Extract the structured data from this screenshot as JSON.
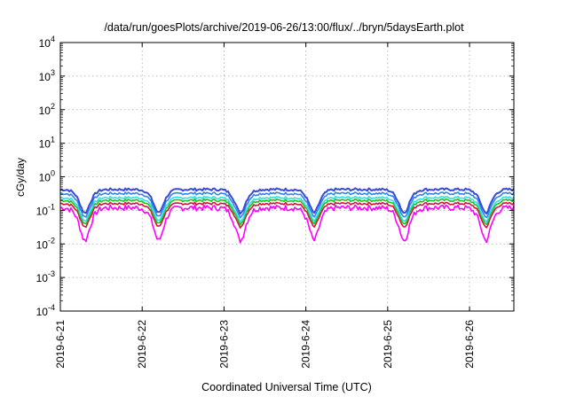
{
  "chart_data": {
    "type": "line",
    "title": "/data/run/goesPlots/archive/2019-06-26/13:00/flux/../bryn/5daysEarth.plot",
    "xlabel": "Coordinated Universal Time (UTC)",
    "ylabel": "cGy/day",
    "yscale": "log",
    "ylim": [
      0.0001,
      10000
    ],
    "y_ticks": [
      {
        "value": 0.0001,
        "base": "10",
        "exp": "-4"
      },
      {
        "value": 0.001,
        "base": "10",
        "exp": "-3"
      },
      {
        "value": 0.01,
        "base": "10",
        "exp": "-2"
      },
      {
        "value": 0.1,
        "base": "10",
        "exp": "-1"
      },
      {
        "value": 1,
        "base": "10",
        "exp": "0"
      },
      {
        "value": 10,
        "base": "10",
        "exp": "1"
      },
      {
        "value": 100,
        "base": "10",
        "exp": "2"
      },
      {
        "value": 1000,
        "base": "10",
        "exp": "3"
      },
      {
        "value": 10000,
        "base": "10",
        "exp": "4"
      }
    ],
    "x_range": [
      "2019-06-21T00:00",
      "2019-06-26T13:00"
    ],
    "x_ticks": [
      "2019-6-21",
      "2019-6-22",
      "2019-6-23",
      "2019-6-24",
      "2019-6-25",
      "2019-6-26"
    ],
    "grid": true,
    "series_colors": [
      "#ff00ff",
      "#d2143c",
      "#22c020",
      "#30e0e0",
      "#2f86e8",
      "#3a49d8"
    ],
    "series_base_values": [
      0.12,
      0.16,
      0.2,
      0.24,
      0.32,
      0.42
    ],
    "dip_centers_days": [
      0.3,
      1.2,
      2.2,
      3.1,
      4.2,
      5.2
    ],
    "daily_pattern_note_values": {
      "plateau": 1.0,
      "dip_min": 0.2
    }
  }
}
